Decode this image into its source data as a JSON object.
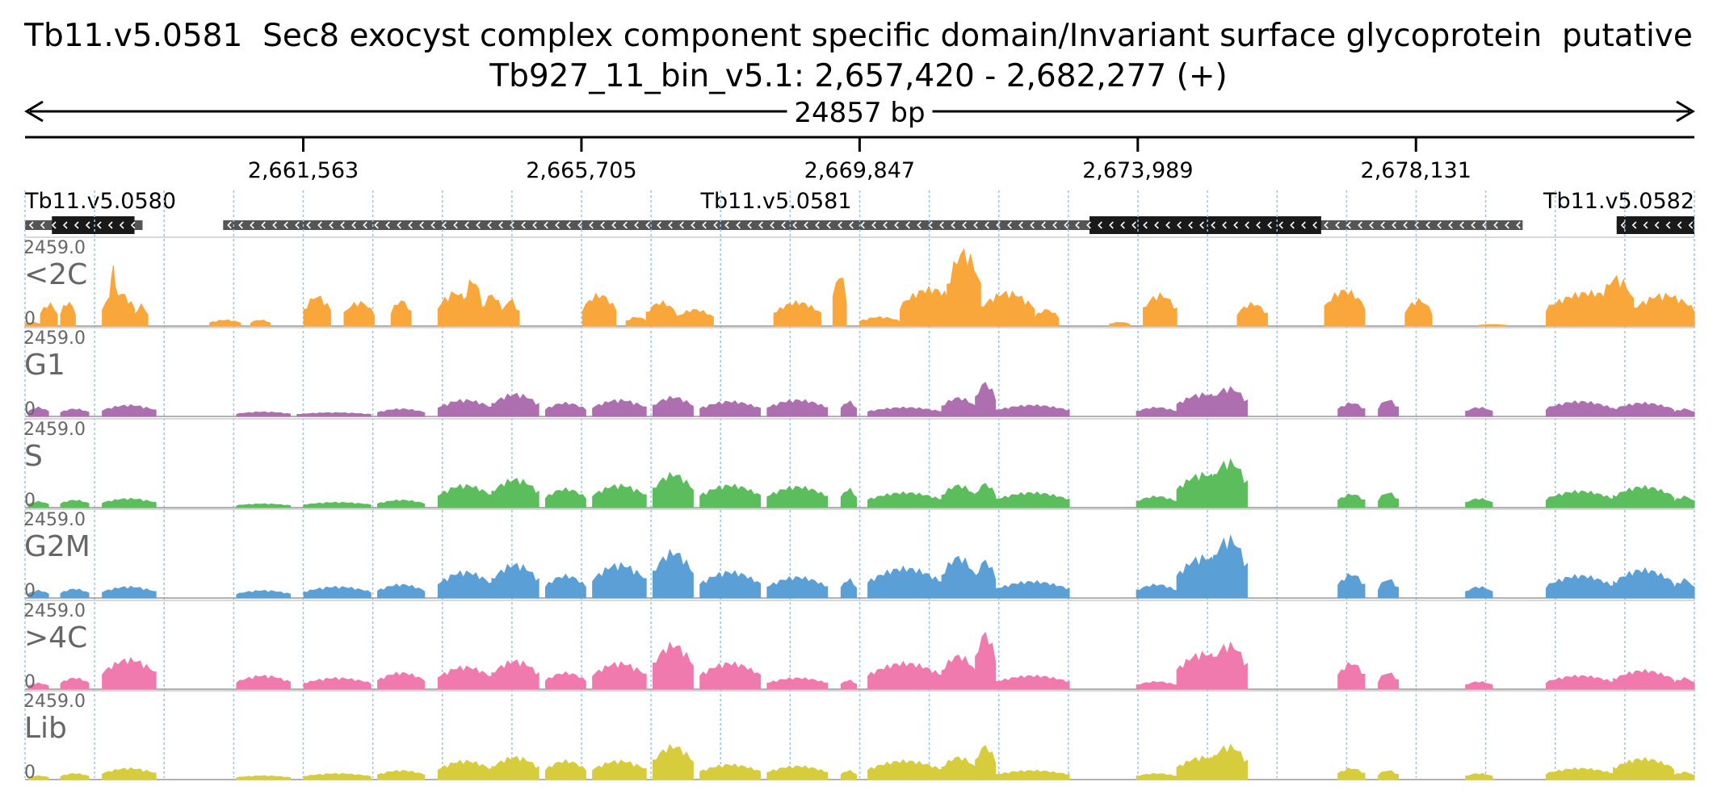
{
  "header": {
    "title": "Tb11.v5.0581  Sec8 exocyst complex component specific domain/Invariant surface glycoprotein  putative",
    "region": "Tb927_11_bin_v5.1: 2,657,420 - 2,682,277 (+)"
  },
  "span_label": "24857 bp",
  "colors": {
    "<2C": "#f9a63b",
    "G1": "#ae6fb1",
    "S": "#5bbd5b",
    "G2M": "#5aa0d6",
    ">4C": "#f07aae",
    "Lib": "#d6cc3c",
    "gene_dark": "#1a1a1a",
    "gene_light": "#555555",
    "grid": "#9ec2e6"
  },
  "chart_data": {
    "type": "area",
    "xlim": [
      2657420,
      2682277
    ],
    "ticks": [
      {
        "pos": 2661563,
        "label": "2,661,563"
      },
      {
        "pos": 2665705,
        "label": "2,665,705"
      },
      {
        "pos": 2669847,
        "label": "2,669,847"
      },
      {
        "pos": 2673989,
        "label": "2,673,989"
      },
      {
        "pos": 2678131,
        "label": "2,678,131"
      }
    ],
    "genes": [
      {
        "name": "Tb11.v5.0580",
        "start": 2657420,
        "end": 2659170,
        "cds_start": 2657820,
        "cds_end": 2659050,
        "strand": "-"
      },
      {
        "name": "Tb11.v5.0581",
        "start": 2660370,
        "end": 2679720,
        "cds_start": 2673270,
        "cds_end": 2676720,
        "strand": "-"
      },
      {
        "name": "Tb11.v5.0582",
        "start": 2681120,
        "end": 2682277,
        "cds_start": 2681120,
        "cds_end": 2682277,
        "strand": "-"
      }
    ],
    "track_max": 2459.0,
    "track_min": 0,
    "tracks": [
      {
        "name": "<2C",
        "peaks": [
          {
            "start": 2657420,
            "end": 2657650,
            "h": 0.05
          },
          {
            "start": 2657650,
            "end": 2657900,
            "h": 0.3
          },
          {
            "start": 2657950,
            "end": 2658170,
            "h": 0.32
          },
          {
            "start": 2658570,
            "end": 2659050,
            "h": 0.45
          },
          {
            "start": 2658680,
            "end": 2658790,
            "h": 0.78
          },
          {
            "start": 2659050,
            "end": 2659250,
            "h": 0.28
          },
          {
            "start": 2660170,
            "end": 2660630,
            "h": 0.08
          },
          {
            "start": 2660780,
            "end": 2661070,
            "h": 0.08
          },
          {
            "start": 2661570,
            "end": 2661970,
            "h": 0.4
          },
          {
            "start": 2662170,
            "end": 2662620,
            "h": 0.32
          },
          {
            "start": 2662870,
            "end": 2663170,
            "h": 0.34
          },
          {
            "start": 2663570,
            "end": 2664070,
            "h": 0.45
          },
          {
            "start": 2663950,
            "end": 2664220,
            "h": 0.62
          },
          {
            "start": 2664220,
            "end": 2664520,
            "h": 0.42
          },
          {
            "start": 2664520,
            "end": 2664780,
            "h": 0.35
          },
          {
            "start": 2665720,
            "end": 2666220,
            "h": 0.42
          },
          {
            "start": 2666370,
            "end": 2666680,
            "h": 0.12
          },
          {
            "start": 2666670,
            "end": 2667120,
            "h": 0.32
          },
          {
            "start": 2667120,
            "end": 2667670,
            "h": 0.22
          },
          {
            "start": 2668570,
            "end": 2669270,
            "h": 0.32
          },
          {
            "start": 2669450,
            "end": 2669650,
            "h": 0.7
          },
          {
            "start": 2669850,
            "end": 2670450,
            "h": 0.12
          },
          {
            "start": 2670450,
            "end": 2671350,
            "h": 0.5
          },
          {
            "start": 2671150,
            "end": 2671650,
            "h": 1.0
          },
          {
            "start": 2671650,
            "end": 2672450,
            "h": 0.45
          },
          {
            "start": 2672450,
            "end": 2672810,
            "h": 0.22
          },
          {
            "start": 2673570,
            "end": 2673870,
            "h": 0.05
          },
          {
            "start": 2674070,
            "end": 2674570,
            "h": 0.42
          },
          {
            "start": 2675470,
            "end": 2675920,
            "h": 0.3
          },
          {
            "start": 2676770,
            "end": 2677370,
            "h": 0.48
          },
          {
            "start": 2677970,
            "end": 2678370,
            "h": 0.35
          },
          {
            "start": 2679070,
            "end": 2679470,
            "h": 0.02
          },
          {
            "start": 2680070,
            "end": 2681370,
            "h": 0.45
          },
          {
            "start": 2680870,
            "end": 2681370,
            "h": 0.65
          },
          {
            "start": 2681370,
            "end": 2682277,
            "h": 0.42
          }
        ]
      },
      {
        "name": "G1",
        "peaks": [
          {
            "start": 2657470,
            "end": 2657770,
            "h": 0.12
          },
          {
            "start": 2657950,
            "end": 2658370,
            "h": 0.1
          },
          {
            "start": 2658570,
            "end": 2659370,
            "h": 0.15
          },
          {
            "start": 2660570,
            "end": 2661370,
            "h": 0.06
          },
          {
            "start": 2661470,
            "end": 2662570,
            "h": 0.05
          },
          {
            "start": 2662670,
            "end": 2663370,
            "h": 0.1
          },
          {
            "start": 2663570,
            "end": 2664370,
            "h": 0.22
          },
          {
            "start": 2664370,
            "end": 2665070,
            "h": 0.3
          },
          {
            "start": 2665170,
            "end": 2665770,
            "h": 0.18
          },
          {
            "start": 2665870,
            "end": 2666670,
            "h": 0.22
          },
          {
            "start": 2666770,
            "end": 2667370,
            "h": 0.26
          },
          {
            "start": 2667470,
            "end": 2668370,
            "h": 0.2
          },
          {
            "start": 2668470,
            "end": 2669370,
            "h": 0.22
          },
          {
            "start": 2669570,
            "end": 2669800,
            "h": 0.2
          },
          {
            "start": 2669970,
            "end": 2671070,
            "h": 0.12
          },
          {
            "start": 2671070,
            "end": 2671570,
            "h": 0.25
          },
          {
            "start": 2671570,
            "end": 2671870,
            "h": 0.45
          },
          {
            "start": 2671870,
            "end": 2672970,
            "h": 0.15
          },
          {
            "start": 2673970,
            "end": 2674570,
            "h": 0.12
          },
          {
            "start": 2674570,
            "end": 2675370,
            "h": 0.3
          },
          {
            "start": 2675070,
            "end": 2675620,
            "h": 0.38
          },
          {
            "start": 2676970,
            "end": 2677370,
            "h": 0.18
          },
          {
            "start": 2677570,
            "end": 2677870,
            "h": 0.22
          },
          {
            "start": 2678870,
            "end": 2679270,
            "h": 0.12
          },
          {
            "start": 2680070,
            "end": 2681070,
            "h": 0.2
          },
          {
            "start": 2681070,
            "end": 2681970,
            "h": 0.18
          },
          {
            "start": 2681970,
            "end": 2682277,
            "h": 0.1
          }
        ]
      },
      {
        "name": "S",
        "peaks": [
          {
            "start": 2657470,
            "end": 2657770,
            "h": 0.08
          },
          {
            "start": 2657950,
            "end": 2658370,
            "h": 0.1
          },
          {
            "start": 2658570,
            "end": 2659370,
            "h": 0.12
          },
          {
            "start": 2660570,
            "end": 2661370,
            "h": 0.05
          },
          {
            "start": 2661570,
            "end": 2662570,
            "h": 0.07
          },
          {
            "start": 2662670,
            "end": 2663370,
            "h": 0.1
          },
          {
            "start": 2663570,
            "end": 2664370,
            "h": 0.3
          },
          {
            "start": 2664370,
            "end": 2665070,
            "h": 0.38
          },
          {
            "start": 2665170,
            "end": 2665770,
            "h": 0.25
          },
          {
            "start": 2665870,
            "end": 2666670,
            "h": 0.3
          },
          {
            "start": 2666770,
            "end": 2667370,
            "h": 0.45
          },
          {
            "start": 2667470,
            "end": 2668370,
            "h": 0.3
          },
          {
            "start": 2668470,
            "end": 2669370,
            "h": 0.28
          },
          {
            "start": 2669570,
            "end": 2669800,
            "h": 0.25
          },
          {
            "start": 2669970,
            "end": 2671070,
            "h": 0.2
          },
          {
            "start": 2671070,
            "end": 2671570,
            "h": 0.3
          },
          {
            "start": 2671570,
            "end": 2671870,
            "h": 0.32
          },
          {
            "start": 2671870,
            "end": 2672970,
            "h": 0.2
          },
          {
            "start": 2673970,
            "end": 2674570,
            "h": 0.15
          },
          {
            "start": 2674570,
            "end": 2675370,
            "h": 0.45
          },
          {
            "start": 2675070,
            "end": 2675620,
            "h": 0.62
          },
          {
            "start": 2676970,
            "end": 2677370,
            "h": 0.18
          },
          {
            "start": 2677570,
            "end": 2677870,
            "h": 0.2
          },
          {
            "start": 2678870,
            "end": 2679270,
            "h": 0.12
          },
          {
            "start": 2680070,
            "end": 2681070,
            "h": 0.22
          },
          {
            "start": 2681070,
            "end": 2681970,
            "h": 0.28
          },
          {
            "start": 2681970,
            "end": 2682277,
            "h": 0.15
          }
        ]
      },
      {
        "name": "G2M",
        "peaks": [
          {
            "start": 2657470,
            "end": 2657770,
            "h": 0.1
          },
          {
            "start": 2657950,
            "end": 2658370,
            "h": 0.12
          },
          {
            "start": 2658570,
            "end": 2659370,
            "h": 0.15
          },
          {
            "start": 2660570,
            "end": 2661370,
            "h": 0.1
          },
          {
            "start": 2661570,
            "end": 2662570,
            "h": 0.15
          },
          {
            "start": 2662670,
            "end": 2663370,
            "h": 0.18
          },
          {
            "start": 2663570,
            "end": 2664370,
            "h": 0.35
          },
          {
            "start": 2664370,
            "end": 2665070,
            "h": 0.45
          },
          {
            "start": 2665170,
            "end": 2665770,
            "h": 0.3
          },
          {
            "start": 2665870,
            "end": 2666670,
            "h": 0.45
          },
          {
            "start": 2666770,
            "end": 2667370,
            "h": 0.62
          },
          {
            "start": 2667470,
            "end": 2668370,
            "h": 0.35
          },
          {
            "start": 2668470,
            "end": 2669370,
            "h": 0.28
          },
          {
            "start": 2669570,
            "end": 2669800,
            "h": 0.25
          },
          {
            "start": 2669970,
            "end": 2671070,
            "h": 0.4
          },
          {
            "start": 2671070,
            "end": 2671570,
            "h": 0.55
          },
          {
            "start": 2671570,
            "end": 2671870,
            "h": 0.5
          },
          {
            "start": 2671870,
            "end": 2672970,
            "h": 0.22
          },
          {
            "start": 2673970,
            "end": 2674570,
            "h": 0.18
          },
          {
            "start": 2674570,
            "end": 2675370,
            "h": 0.55
          },
          {
            "start": 2675070,
            "end": 2675620,
            "h": 0.8
          },
          {
            "start": 2676970,
            "end": 2677370,
            "h": 0.32
          },
          {
            "start": 2677570,
            "end": 2677870,
            "h": 0.25
          },
          {
            "start": 2678870,
            "end": 2679270,
            "h": 0.15
          },
          {
            "start": 2680070,
            "end": 2681070,
            "h": 0.3
          },
          {
            "start": 2681070,
            "end": 2681970,
            "h": 0.38
          },
          {
            "start": 2681970,
            "end": 2682277,
            "h": 0.25
          }
        ]
      },
      {
        "name": ">4C",
        "peaks": [
          {
            "start": 2657470,
            "end": 2657770,
            "h": 0.08
          },
          {
            "start": 2657950,
            "end": 2658370,
            "h": 0.15
          },
          {
            "start": 2658570,
            "end": 2659370,
            "h": 0.4
          },
          {
            "start": 2660570,
            "end": 2661370,
            "h": 0.18
          },
          {
            "start": 2661570,
            "end": 2662570,
            "h": 0.15
          },
          {
            "start": 2662670,
            "end": 2663370,
            "h": 0.22
          },
          {
            "start": 2663570,
            "end": 2664370,
            "h": 0.3
          },
          {
            "start": 2664370,
            "end": 2665070,
            "h": 0.38
          },
          {
            "start": 2665170,
            "end": 2665770,
            "h": 0.22
          },
          {
            "start": 2665870,
            "end": 2666670,
            "h": 0.35
          },
          {
            "start": 2666770,
            "end": 2667370,
            "h": 0.6
          },
          {
            "start": 2667470,
            "end": 2668370,
            "h": 0.35
          },
          {
            "start": 2668470,
            "end": 2669370,
            "h": 0.15
          },
          {
            "start": 2669570,
            "end": 2669800,
            "h": 0.12
          },
          {
            "start": 2669970,
            "end": 2671070,
            "h": 0.35
          },
          {
            "start": 2671070,
            "end": 2671570,
            "h": 0.45
          },
          {
            "start": 2671570,
            "end": 2671870,
            "h": 0.75
          },
          {
            "start": 2671870,
            "end": 2672970,
            "h": 0.18
          },
          {
            "start": 2673970,
            "end": 2674570,
            "h": 0.1
          },
          {
            "start": 2674570,
            "end": 2675370,
            "h": 0.48
          },
          {
            "start": 2675070,
            "end": 2675620,
            "h": 0.6
          },
          {
            "start": 2676970,
            "end": 2677370,
            "h": 0.35
          },
          {
            "start": 2677570,
            "end": 2677870,
            "h": 0.22
          },
          {
            "start": 2678870,
            "end": 2679270,
            "h": 0.1
          },
          {
            "start": 2680070,
            "end": 2681070,
            "h": 0.18
          },
          {
            "start": 2681070,
            "end": 2681970,
            "h": 0.25
          },
          {
            "start": 2681970,
            "end": 2682277,
            "h": 0.15
          }
        ]
      },
      {
        "name": "Lib",
        "peaks": [
          {
            "start": 2657470,
            "end": 2657770,
            "h": 0.05
          },
          {
            "start": 2657950,
            "end": 2658370,
            "h": 0.08
          },
          {
            "start": 2658570,
            "end": 2659370,
            "h": 0.15
          },
          {
            "start": 2660570,
            "end": 2661370,
            "h": 0.05
          },
          {
            "start": 2661570,
            "end": 2662570,
            "h": 0.08
          },
          {
            "start": 2662670,
            "end": 2663370,
            "h": 0.12
          },
          {
            "start": 2663570,
            "end": 2664370,
            "h": 0.25
          },
          {
            "start": 2664370,
            "end": 2665070,
            "h": 0.3
          },
          {
            "start": 2665170,
            "end": 2665770,
            "h": 0.25
          },
          {
            "start": 2665870,
            "end": 2666670,
            "h": 0.25
          },
          {
            "start": 2666770,
            "end": 2667370,
            "h": 0.45
          },
          {
            "start": 2667470,
            "end": 2668370,
            "h": 0.2
          },
          {
            "start": 2668470,
            "end": 2669370,
            "h": 0.18
          },
          {
            "start": 2669570,
            "end": 2669800,
            "h": 0.12
          },
          {
            "start": 2669970,
            "end": 2671070,
            "h": 0.25
          },
          {
            "start": 2671070,
            "end": 2671570,
            "h": 0.3
          },
          {
            "start": 2671570,
            "end": 2671870,
            "h": 0.45
          },
          {
            "start": 2671870,
            "end": 2672970,
            "h": 0.12
          },
          {
            "start": 2673970,
            "end": 2674570,
            "h": 0.08
          },
          {
            "start": 2674570,
            "end": 2675370,
            "h": 0.3
          },
          {
            "start": 2675070,
            "end": 2675620,
            "h": 0.45
          },
          {
            "start": 2676970,
            "end": 2677370,
            "h": 0.15
          },
          {
            "start": 2677570,
            "end": 2677870,
            "h": 0.12
          },
          {
            "start": 2678870,
            "end": 2679270,
            "h": 0.08
          },
          {
            "start": 2680070,
            "end": 2681070,
            "h": 0.15
          },
          {
            "start": 2681070,
            "end": 2681970,
            "h": 0.28
          },
          {
            "start": 2681970,
            "end": 2682277,
            "h": 0.1
          }
        ]
      }
    ]
  }
}
